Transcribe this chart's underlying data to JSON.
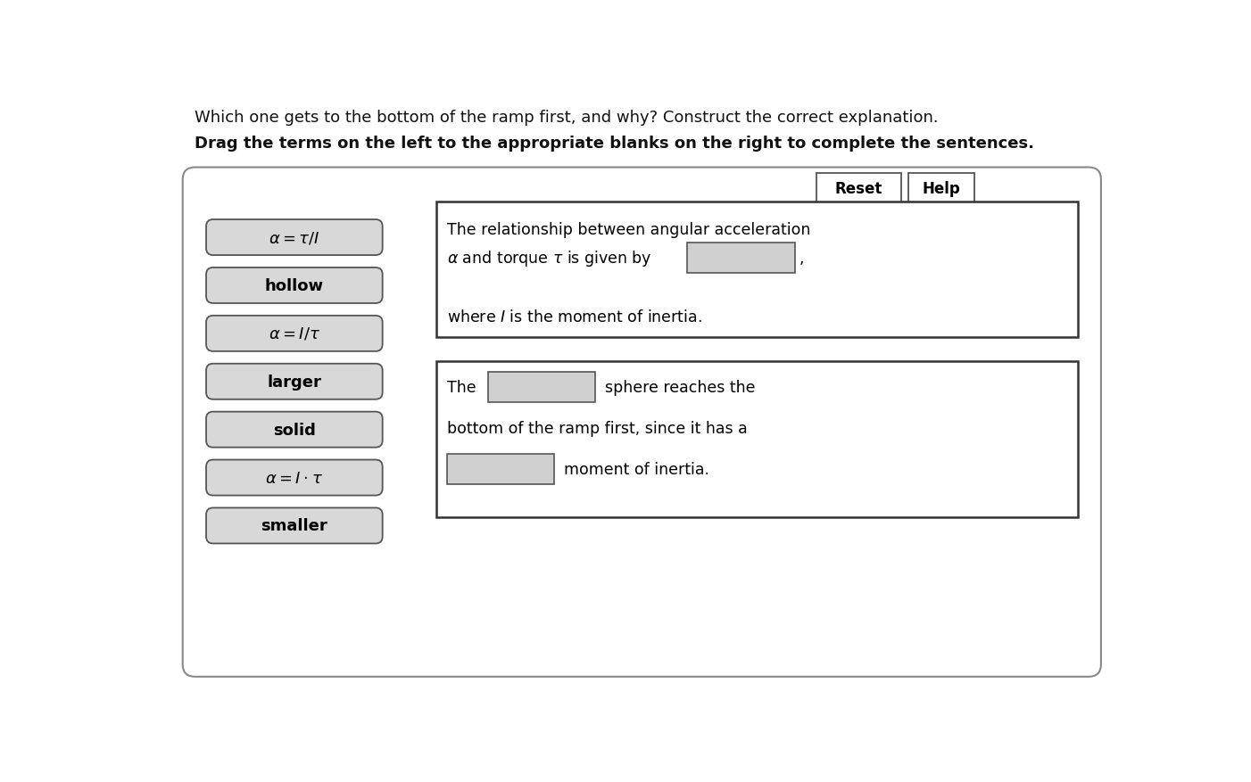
{
  "bg_color": "#f0f0f0",
  "page_bg": "#ffffff",
  "title_text": "Which one gets to the bottom of the ramp first, and why? Construct the correct explanation.",
  "subtitle_text": "Drag the terms on the left to the appropriate blanks on the right to complete the sentences.",
  "reset_label": "Reset",
  "help_label": "Help",
  "left_items": [
    {
      "label": "$\\alpha = \\tau/I$",
      "math": true
    },
    {
      "label": "hollow",
      "math": false
    },
    {
      "label": "$\\alpha = I/\\tau$",
      "math": true
    },
    {
      "label": "larger",
      "math": false
    },
    {
      "label": "solid",
      "math": false
    },
    {
      "label": "$\\alpha = I \\cdot \\tau$",
      "math": true
    },
    {
      "label": "smaller",
      "math": false
    }
  ],
  "panel_bg": "#ffffff",
  "panel_border": "#888888",
  "item_bg": "#d8d8d8",
  "item_border": "#555555",
  "blank_bg": "#d0d0d0",
  "blank_border": "#555555",
  "button_bg": "#ffffff",
  "button_border": "#555555"
}
